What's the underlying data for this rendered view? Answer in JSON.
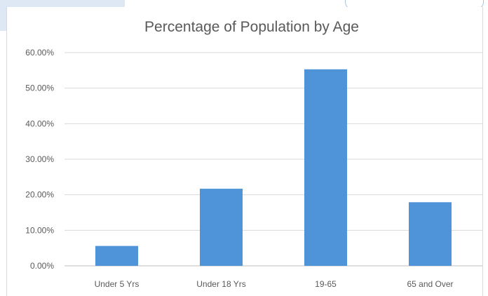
{
  "chart_data": {
    "type": "bar",
    "title": "Percentage of Population by Age",
    "categories": [
      "Under 5 Yrs",
      "Under 18 Yrs",
      "19-65",
      "65 and Over"
    ],
    "values": [
      5.6,
      21.7,
      55.3,
      17.9
    ],
    "value_unit": "percent",
    "ylim": [
      0,
      60
    ],
    "yticks": [
      0,
      10,
      20,
      30,
      40,
      50,
      60
    ],
    "ytick_labels": [
      "0.00%",
      "10.00%",
      "20.00%",
      "30.00%",
      "40.00%",
      "50.00%",
      "60.00%"
    ],
    "xlabel": "",
    "ylabel": "",
    "grid": true,
    "legend": "none",
    "bar_color": "#4f94d9"
  }
}
